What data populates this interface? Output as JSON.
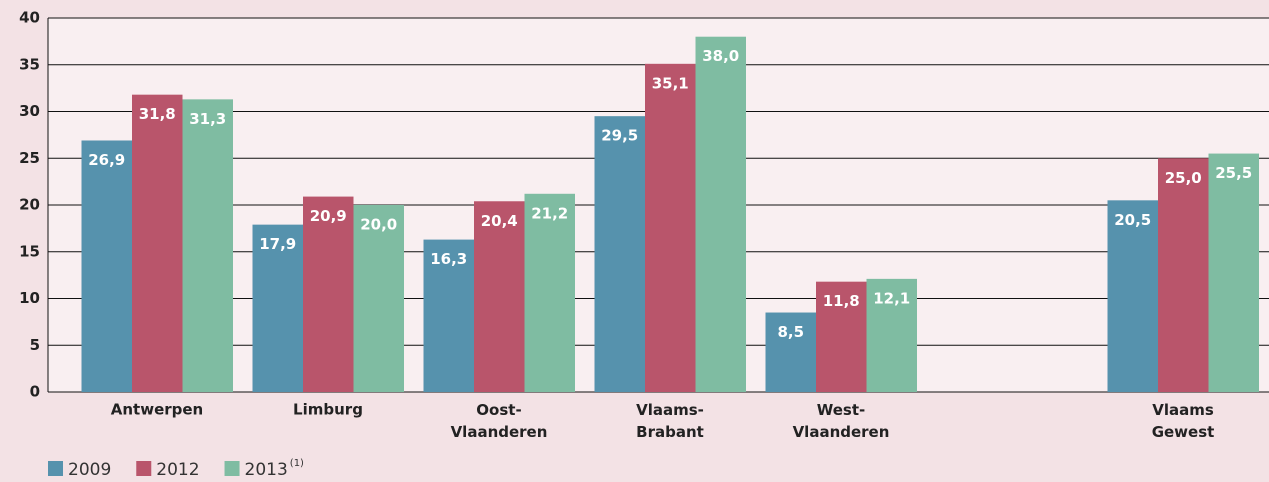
{
  "chart_data": {
    "type": "bar",
    "categories": [
      "Antwerpen",
      "Limburg",
      "Oost-\nVlaanderen",
      "Vlaams-\nBrabant",
      "West-\nVlaanderen",
      null,
      "Vlaams\nGewest"
    ],
    "series": [
      {
        "name": "2009",
        "color": "#5692ad",
        "values": [
          26.9,
          17.9,
          16.3,
          29.5,
          8.5,
          null,
          20.5
        ],
        "value_labels": [
          "26,9",
          "17,9",
          "16,3",
          "29,5",
          "8,5",
          null,
          "20,5"
        ]
      },
      {
        "name": "2012",
        "color": "#b9556b",
        "values": [
          31.8,
          20.9,
          20.4,
          35.1,
          11.8,
          null,
          25.0
        ],
        "value_labels": [
          "31,8",
          "20,9",
          "20,4",
          "35,1",
          "11,8",
          null,
          "25,0"
        ]
      },
      {
        "name": "2013",
        "note": "(1)",
        "color": "#7fbca2",
        "values": [
          31.3,
          20.0,
          21.2,
          38.0,
          12.1,
          null,
          25.5
        ],
        "value_labels": [
          "31,3",
          "20,0",
          "21,2",
          "38,0",
          "12,1",
          null,
          "25,5"
        ]
      }
    ],
    "ylim": [
      0,
      40
    ],
    "yticks": [
      0,
      5,
      10,
      15,
      20,
      25,
      30,
      35,
      40
    ],
    "grid": true,
    "legend": "bottom-left"
  }
}
